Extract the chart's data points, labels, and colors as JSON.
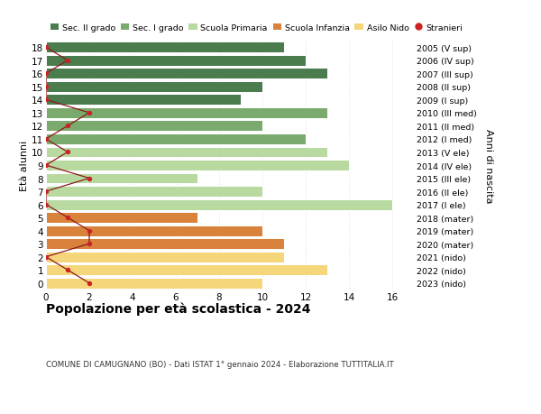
{
  "ages": [
    18,
    17,
    16,
    15,
    14,
    13,
    12,
    11,
    10,
    9,
    8,
    7,
    6,
    5,
    4,
    3,
    2,
    1,
    0
  ],
  "years_labels": [
    "2005 (V sup)",
    "2006 (IV sup)",
    "2007 (III sup)",
    "2008 (II sup)",
    "2009 (I sup)",
    "2010 (III med)",
    "2011 (II med)",
    "2012 (I med)",
    "2013 (V ele)",
    "2014 (IV ele)",
    "2015 (III ele)",
    "2016 (II ele)",
    "2017 (I ele)",
    "2018 (mater)",
    "2019 (mater)",
    "2020 (mater)",
    "2021 (nido)",
    "2022 (nido)",
    "2023 (nido)"
  ],
  "bar_values": [
    11,
    12,
    13,
    10,
    9,
    13,
    10,
    12,
    13,
    14,
    7,
    10,
    16,
    7,
    10,
    11,
    11,
    13,
    10
  ],
  "bar_colors": [
    "#4a7c4e",
    "#4a7c4e",
    "#4a7c4e",
    "#4a7c4e",
    "#4a7c4e",
    "#7aaa6e",
    "#7aaa6e",
    "#7aaa6e",
    "#b8d9a0",
    "#b8d9a0",
    "#b8d9a0",
    "#b8d9a0",
    "#b8d9a0",
    "#d9823c",
    "#d9823c",
    "#d9823c",
    "#f5d67a",
    "#f5d67a",
    "#f5d67a"
  ],
  "stranieri_values": [
    0,
    1,
    0,
    0,
    0,
    2,
    1,
    0,
    1,
    0,
    2,
    0,
    0,
    1,
    2,
    2,
    0,
    1,
    2
  ],
  "legend_labels": [
    "Sec. II grado",
    "Sec. I grado",
    "Scuola Primaria",
    "Scuola Infanzia",
    "Asilo Nido",
    "Stranieri"
  ],
  "legend_colors": [
    "#4a7c4e",
    "#7aaa6e",
    "#b8d9a0",
    "#d9823c",
    "#f5d67a",
    "#cc2222"
  ],
  "title": "Popolazione per età scolastica - 2024",
  "subtitle": "COMUNE DI CAMUGNANO (BO) - Dati ISTAT 1° gennaio 2024 - Elaborazione TUTTITALIA.IT",
  "ylabel_left": "Età alunni",
  "ylabel_right": "Anni di nascita",
  "xlim": [
    0,
    17
  ],
  "xticks": [
    0,
    2,
    4,
    6,
    8,
    10,
    12,
    14,
    16
  ],
  "background_color": "#ffffff",
  "grid_color": "#cccccc",
  "bar_edge_color": "#ffffff"
}
